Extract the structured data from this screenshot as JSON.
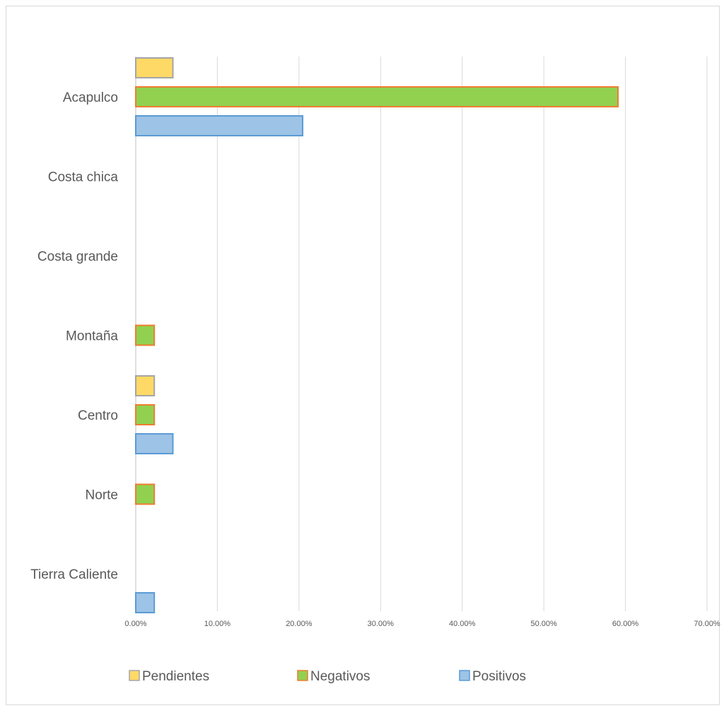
{
  "chart_data": {
    "type": "bar",
    "orientation": "horizontal",
    "categories": [
      "Acapulco",
      "Costa chica",
      "Costa grande",
      "Montaña",
      "Centro",
      "Norte",
      "Tierra Caliente"
    ],
    "series": [
      {
        "name": "Pendientes",
        "values": [
          4.55,
          0,
          0,
          0,
          2.27,
          0,
          0
        ],
        "color": "#FFD966",
        "border": "#A5A5A5"
      },
      {
        "name": "Negativos",
        "values": [
          59.09,
          0,
          0,
          2.27,
          2.27,
          2.27,
          0
        ],
        "color": "#92D050",
        "border": "#ED7D31"
      },
      {
        "name": "Positivos",
        "values": [
          20.45,
          0,
          0,
          0,
          4.55,
          0,
          2.27
        ],
        "color": "#9DC3E6",
        "border": "#5B9BD5"
      }
    ],
    "xlim": [
      0,
      70
    ],
    "x_ticks": [
      "0.00%",
      "10.00%",
      "20.00%",
      "30.00%",
      "40.00%",
      "50.00%",
      "60.00%",
      "70.00%"
    ],
    "grid": true,
    "legend_position": "bottom"
  }
}
